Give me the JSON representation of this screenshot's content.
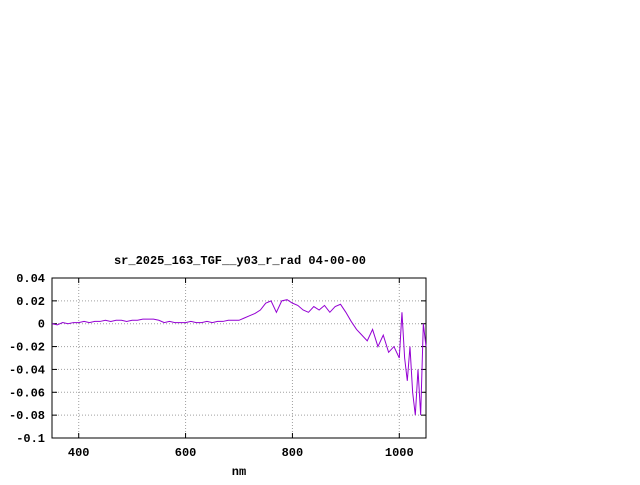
{
  "chart_data": {
    "type": "line",
    "title": "sr_2025_163_TGF__y03_r_rad 04-00-00",
    "x_label": "nm",
    "color": "#9400d3",
    "xlim": [
      350,
      1050
    ],
    "xticks": [
      400,
      600,
      800,
      1000
    ],
    "ylim": [
      -0.1,
      0.04
    ],
    "yticks": [
      0.04,
      0.02,
      0,
      -0.02,
      -0.04,
      -0.06,
      -0.08,
      -0.1
    ],
    "grid": true,
    "x": [
      350,
      360,
      370,
      380,
      390,
      400,
      410,
      420,
      430,
      440,
      450,
      460,
      470,
      480,
      490,
      500,
      510,
      520,
      530,
      540,
      550,
      560,
      570,
      580,
      590,
      600,
      610,
      620,
      630,
      640,
      650,
      660,
      670,
      680,
      690,
      700,
      710,
      720,
      730,
      740,
      750,
      760,
      770,
      780,
      790,
      800,
      810,
      820,
      830,
      840,
      850,
      860,
      870,
      880,
      890,
      900,
      910,
      920,
      930,
      940,
      950,
      960,
      970,
      980,
      990,
      1000,
      1005,
      1010,
      1015,
      1020,
      1025,
      1030,
      1035,
      1040,
      1045,
      1050
    ],
    "values": [
      0,
      -0.001,
      0.001,
      0,
      0.001,
      0.001,
      0.002,
      0.001,
      0.002,
      0.002,
      0.003,
      0.002,
      0.003,
      0.003,
      0.002,
      0.003,
      0.003,
      0.004,
      0.004,
      0.004,
      0.003,
      0.001,
      0.002,
      0.001,
      0.001,
      0.001,
      0.002,
      0.001,
      0.001,
      0.002,
      0.001,
      0.002,
      0.002,
      0.003,
      0.003,
      0.003,
      0.005,
      0.007,
      0.009,
      0.012,
      0.018,
      0.02,
      0.01,
      0.02,
      0.021,
      0.018,
      0.016,
      0.012,
      0.01,
      0.015,
      0.012,
      0.016,
      0.01,
      0.015,
      0.017,
      0.01,
      0.002,
      -0.005,
      -0.01,
      -0.015,
      -0.005,
      -0.02,
      -0.01,
      -0.025,
      -0.02,
      -0.03,
      0.01,
      -0.03,
      -0.05,
      -0.02,
      -0.06,
      -0.08,
      -0.04,
      -0.08,
      0,
      -0.02
    ]
  }
}
